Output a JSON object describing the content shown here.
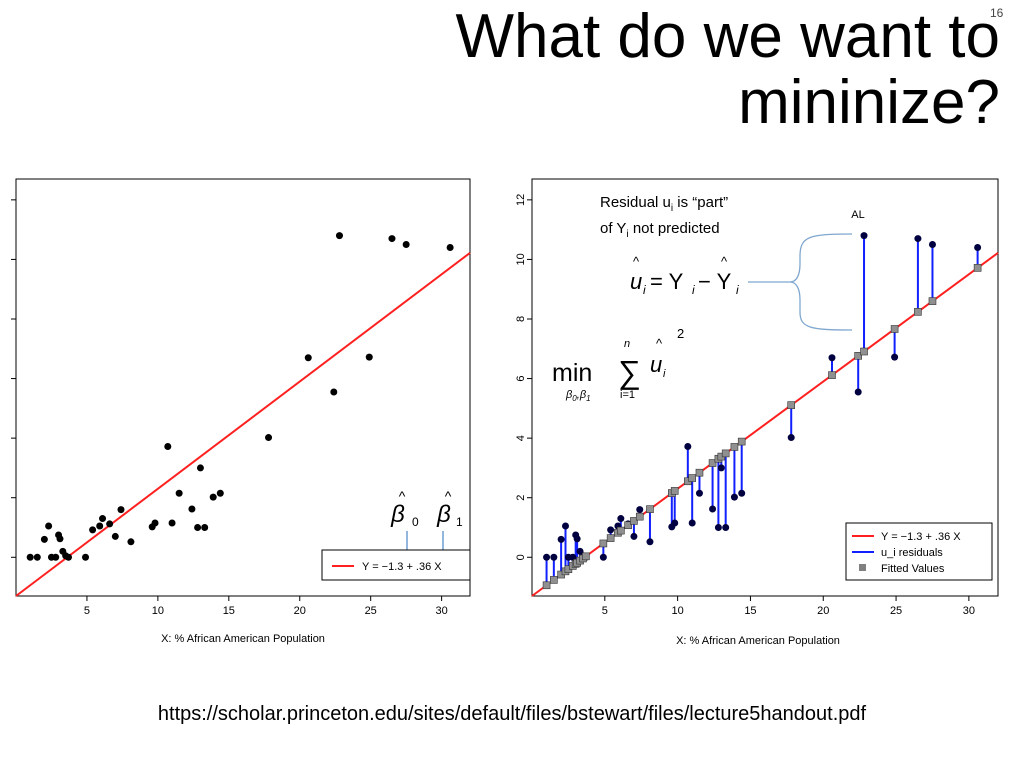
{
  "slide": {
    "number": "16",
    "title_line1": "What do we want to",
    "title_line2": "mininize?",
    "source_url": "https://scholar.princeton.edu/sites/default/files/bstewart/files/lecture5handout.pdf"
  },
  "annotations": {
    "residual_line1": "Residual u",
    "residual_sub1": "i",
    "residual_mid": " is “part”",
    "residual_line2a": "of Y",
    "residual_sub2": "i",
    "residual_line2b": " not predicted",
    "al_label": "AL",
    "beta0_symbol": "β",
    "beta0_sub": "0",
    "beta1_symbol": "β",
    "beta1_sub": "1",
    "hat": "^",
    "eq_u": "u",
    "eq_i": "i",
    "eq_equals": " = Y",
    "eq_minus": " − Y",
    "min_word": "min",
    "min_sub_beta": "β",
    "min_sub_0": "0",
    "min_sub_comma": ",",
    "min_sub_1": "1",
    "sum_symbol": "∑",
    "sum_upper": "n",
    "sum_lower": "i=1",
    "sum_u": "u",
    "sum_i": "i",
    "sum_power": "2"
  },
  "chart_data": [
    {
      "type": "scatter",
      "title": "",
      "xlabel": "X: % African American Population",
      "ylabel": "",
      "xlim": [
        0,
        32
      ],
      "ylim": [
        -1.3,
        12.7
      ],
      "xticks": [
        "5",
        "10",
        "15",
        "20",
        "25",
        "30"
      ],
      "yticks_shown": false,
      "points": [
        [
          1.0,
          0.0
        ],
        [
          1.5,
          0.0
        ],
        [
          2.0,
          0.6
        ],
        [
          2.3,
          1.05
        ],
        [
          2.5,
          0.0
        ],
        [
          2.8,
          0.0
        ],
        [
          3.0,
          0.75
        ],
        [
          3.1,
          0.62
        ],
        [
          3.3,
          0.2
        ],
        [
          3.5,
          0.05
        ],
        [
          3.7,
          0.0
        ],
        [
          4.9,
          0.0
        ],
        [
          5.4,
          0.92
        ],
        [
          5.9,
          1.05
        ],
        [
          6.1,
          1.3
        ],
        [
          6.6,
          1.12
        ],
        [
          7.0,
          0.7
        ],
        [
          7.4,
          1.6
        ],
        [
          8.1,
          0.52
        ],
        [
          9.6,
          1.02
        ],
        [
          9.8,
          1.15
        ],
        [
          10.7,
          3.72
        ],
        [
          11.0,
          1.15
        ],
        [
          11.5,
          2.15
        ],
        [
          12.4,
          1.62
        ],
        [
          12.8,
          1.0
        ],
        [
          13.0,
          3.0
        ],
        [
          13.3,
          1.0
        ],
        [
          13.9,
          2.02
        ],
        [
          14.4,
          2.15
        ],
        [
          17.8,
          4.02
        ],
        [
          20.6,
          6.7
        ],
        [
          22.4,
          5.55
        ],
        [
          22.8,
          10.8
        ],
        [
          24.9,
          6.72
        ],
        [
          26.5,
          10.7
        ],
        [
          27.5,
          10.5
        ],
        [
          30.6,
          10.4
        ]
      ],
      "line": {
        "intercept": -1.3,
        "slope": 0.36
      },
      "legend": [
        {
          "label": "Y = −1.3 + .36 X",
          "color": "#ff2020"
        }
      ],
      "legend_position": "bottom-right",
      "colors": {
        "points": "#000000",
        "line": "#ff2020"
      }
    },
    {
      "type": "scatter",
      "title": "",
      "xlabel": "X: % African American Population",
      "ylabel": "",
      "xlim": [
        0,
        32
      ],
      "ylim": [
        -1.3,
        12.7
      ],
      "xticks": [
        "5",
        "10",
        "15",
        "20",
        "25",
        "30"
      ],
      "yticks": [
        "0",
        "2",
        "4",
        "6",
        "8",
        "10",
        "12"
      ],
      "points": [
        [
          1.0,
          0.0
        ],
        [
          1.5,
          0.0
        ],
        [
          2.0,
          0.6
        ],
        [
          2.3,
          1.05
        ],
        [
          2.5,
          0.0
        ],
        [
          2.8,
          0.0
        ],
        [
          3.0,
          0.75
        ],
        [
          3.1,
          0.62
        ],
        [
          3.3,
          0.2
        ],
        [
          3.5,
          0.05
        ],
        [
          3.7,
          0.0
        ],
        [
          4.9,
          0.0
        ],
        [
          5.4,
          0.92
        ],
        [
          5.9,
          1.05
        ],
        [
          6.1,
          1.3
        ],
        [
          6.6,
          1.12
        ],
        [
          7.0,
          0.7
        ],
        [
          7.4,
          1.6
        ],
        [
          8.1,
          0.52
        ],
        [
          9.6,
          1.02
        ],
        [
          9.8,
          1.15
        ],
        [
          10.7,
          3.72
        ],
        [
          11.0,
          1.15
        ],
        [
          11.5,
          2.15
        ],
        [
          12.4,
          1.62
        ],
        [
          12.8,
          1.0
        ],
        [
          13.0,
          3.0
        ],
        [
          13.3,
          1.0
        ],
        [
          13.9,
          2.02
        ],
        [
          14.4,
          2.15
        ],
        [
          17.8,
          4.02
        ],
        [
          20.6,
          6.7
        ],
        [
          22.4,
          5.55
        ],
        [
          22.8,
          10.8
        ],
        [
          24.9,
          6.72
        ],
        [
          26.5,
          10.7
        ],
        [
          27.5,
          10.5
        ],
        [
          30.6,
          10.4
        ]
      ],
      "line": {
        "intercept": -1.3,
        "slope": 0.36
      },
      "show_residuals": true,
      "show_fitted": true,
      "legend": [
        {
          "label": "Y = −1.3 + .36 X",
          "color": "#ff2020",
          "kind": "line"
        },
        {
          "label": "u_i residuals",
          "color": "#1020ff",
          "kind": "line"
        },
        {
          "label": "Fitted Values",
          "color": "#808080",
          "kind": "square"
        }
      ],
      "legend_position": "bottom-right",
      "colors": {
        "points": "#000040",
        "line": "#ff2020",
        "residuals": "#1020ff",
        "fitted": "#909090",
        "bracket": "#7fa7cf"
      }
    }
  ]
}
